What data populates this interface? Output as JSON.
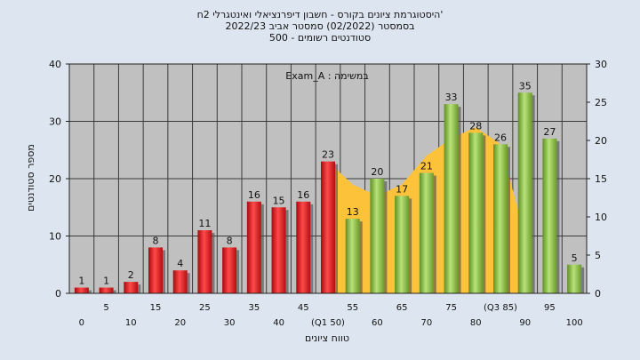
{
  "colors": {
    "background": "#dde6f0",
    "plot_bg": "#c0c0c0",
    "grid": "#3a3a3a",
    "bar_fail": "#e8262a",
    "bar_pass": "#8fc043",
    "area": "#fcc23a"
  },
  "chart_data": {
    "type": "bar",
    "title_lines": [
      "'היסטוגרמת ציונים בקורס - חשבון דיפרנציאלי ואינטגרלי 2ח",
      "בסמסטר   (02/2022)   סמסטר אביב 2022/23",
      "סטודנטים רשומים - 500"
    ],
    "annotation": "במשימה : Exam_A",
    "xlabel": "טווח ציונים",
    "ylabel": "מספר סטודנטים",
    "ylim": [
      0,
      40
    ],
    "y_ticks": [
      0,
      10,
      20,
      30,
      40
    ],
    "y2lim": [
      0,
      30
    ],
    "y2_ticks": [
      0,
      5,
      10,
      15,
      20,
      25,
      30
    ],
    "x_ticks_lower": [
      "0",
      "10",
      "20",
      "30",
      "40",
      "(Q1 50)",
      "60",
      "70",
      "80",
      "90",
      "100"
    ],
    "x_ticks_upper": [
      "5",
      "15",
      "25",
      "35",
      "45",
      "55",
      "65",
      "75",
      "(Q3 85)",
      "95"
    ],
    "categories": [
      "0",
      "5",
      "10",
      "15",
      "20",
      "25",
      "30",
      "35",
      "40",
      "45",
      "50",
      "55",
      "60",
      "65",
      "70",
      "75",
      "80",
      "85",
      "90",
      "95",
      "100"
    ],
    "values": [
      1,
      1,
      2,
      8,
      4,
      11,
      8,
      16,
      15,
      16,
      23,
      13,
      20,
      17,
      21,
      33,
      28,
      26,
      35,
      27,
      5
    ],
    "value_labels": [
      "1",
      "1",
      "2",
      "8",
      "4",
      "11",
      "8",
      "16",
      "15",
      "16",
      "23",
      "13",
      "20",
      "17",
      "21",
      "33",
      "28",
      "26",
      "35",
      "27",
      "5"
    ],
    "pass_from_index": 11,
    "area_series": {
      "x": [
        50,
        55,
        60,
        65,
        70,
        75,
        80,
        85,
        90
      ],
      "values": [
        23,
        19,
        17,
        19,
        24,
        27,
        29,
        26,
        10
      ]
    },
    "grid": true
  }
}
